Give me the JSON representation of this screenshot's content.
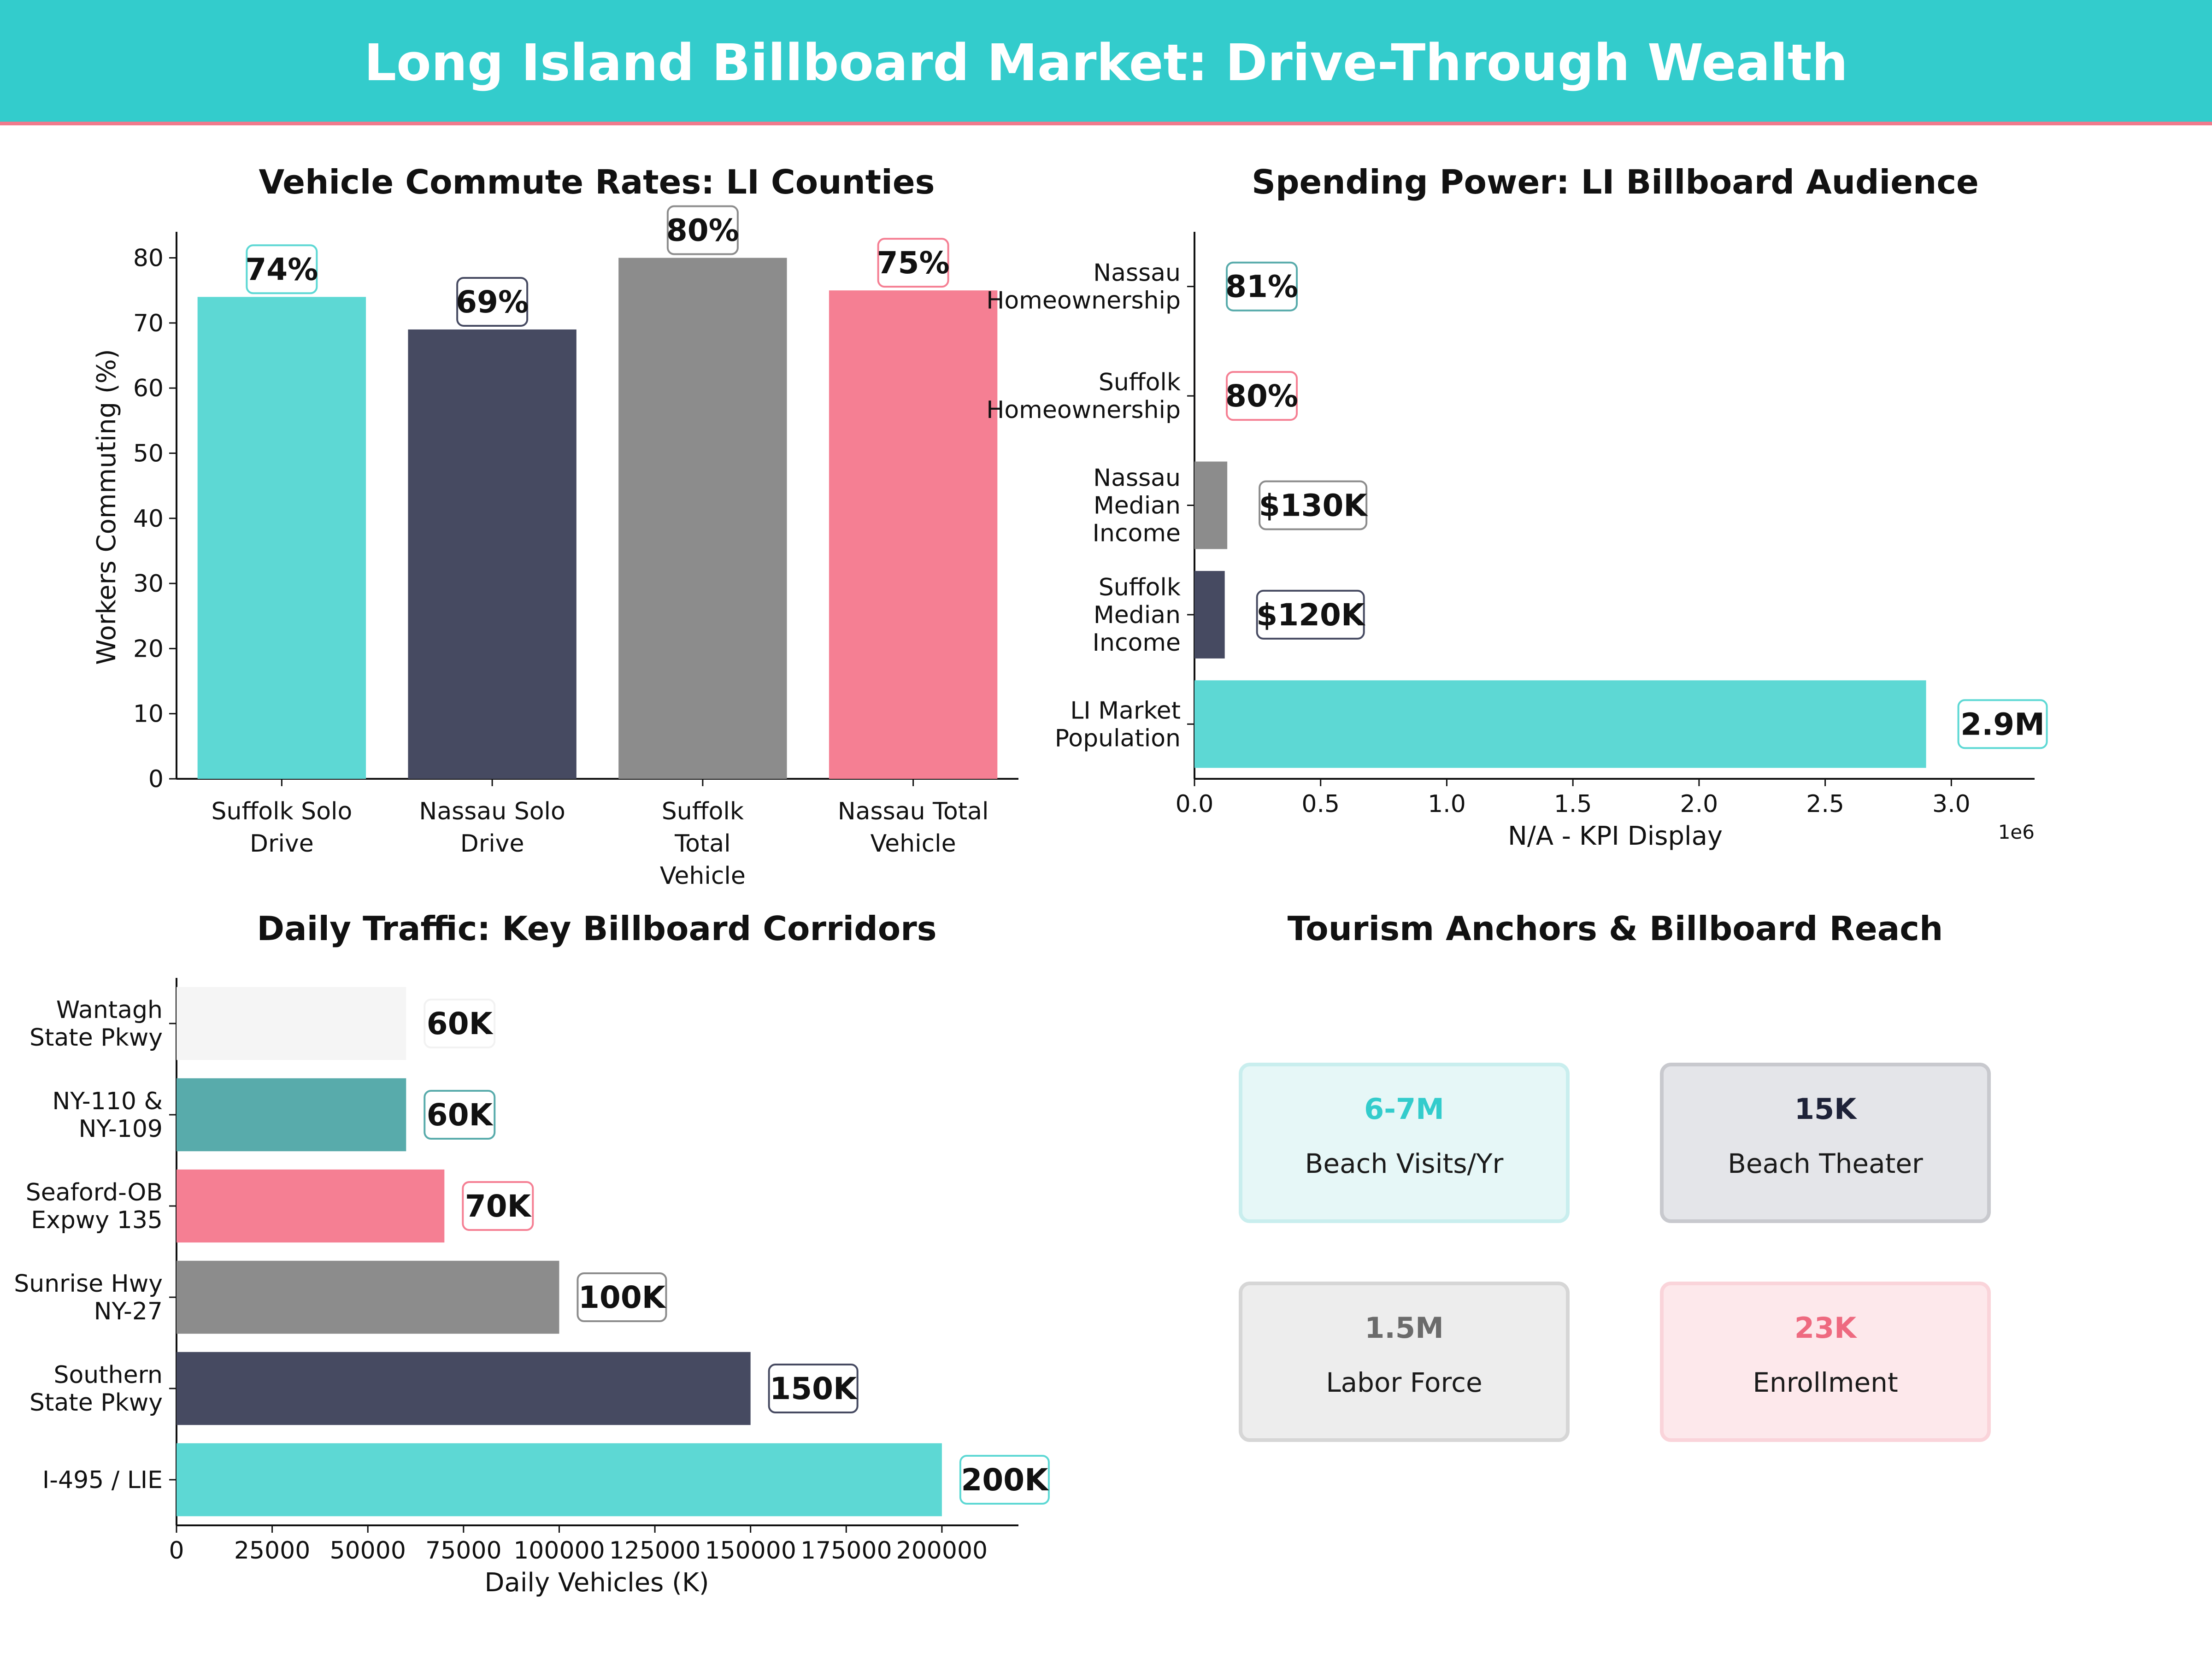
{
  "page_title": "Long Island Billboard Market: Drive-Through Wealth",
  "colors": {
    "header_bg": "#33cccc",
    "header_border": "#f07a8c",
    "teal": "#5dd8d4",
    "navy": "#464a61",
    "gray": "#8c8c8c",
    "pink": "#f57f93",
    "dark_teal": "#58abab",
    "light": "#f5f5f5"
  },
  "chart_data": [
    {
      "id": "commute",
      "type": "bar",
      "title": "Vehicle Commute Rates: LI Counties",
      "ylabel": "Workers Commuting (%)",
      "xlabel": "",
      "ylim": [
        0,
        84
      ],
      "yticks": [
        0,
        10,
        20,
        30,
        40,
        50,
        60,
        70,
        80
      ],
      "categories": [
        [
          "Suffolk Solo",
          "Drive"
        ],
        [
          "Nassau Solo",
          "Drive"
        ],
        [
          "Suffolk",
          "Total",
          "Vehicle"
        ],
        [
          "Nassau Total",
          "Vehicle"
        ]
      ],
      "values": [
        74,
        69,
        80,
        75
      ],
      "value_labels": [
        "74%",
        "69%",
        "80%",
        "75%"
      ],
      "bar_colors": [
        "#5dd8d4",
        "#464a61",
        "#8c8c8c",
        "#f57f93"
      ],
      "label_border_colors": [
        "#5dd8d4",
        "#464a61",
        "#8c8c8c",
        "#f57f93"
      ]
    },
    {
      "id": "spending",
      "type": "bar",
      "orientation": "horizontal",
      "title": "Spending Power: LI Billboard Audience",
      "xlabel": "N/A - KPI Display",
      "xlim": [
        0,
        3330000
      ],
      "xticks": [
        0,
        500000,
        1000000,
        1500000,
        2000000,
        2500000,
        3000000
      ],
      "xtick_labels": [
        "0.0",
        "0.5",
        "1.0",
        "1.5",
        "2.0",
        "2.5",
        "3.0"
      ],
      "offset_text": "1e6",
      "categories": [
        [
          "LI Market",
          "Population"
        ],
        [
          "Suffolk",
          "Median",
          "Income"
        ],
        [
          "Nassau",
          "Median",
          "Income"
        ],
        [
          "Suffolk",
          "Homeownership"
        ],
        [
          "Nassau",
          "Homeownership"
        ]
      ],
      "values": [
        2900000,
        120000,
        130000,
        80,
        81
      ],
      "value_labels": [
        "2.9M",
        "$120K",
        "$130K",
        "80%",
        "81%"
      ],
      "bar_colors": [
        "#5dd8d4",
        "#464a61",
        "#8c8c8c",
        "#f57f93",
        "#58abab"
      ],
      "label_border_colors": [
        "#5dd8d4",
        "#464a61",
        "#8c8c8c",
        "#f57f93",
        "#58abab"
      ]
    },
    {
      "id": "traffic",
      "type": "bar",
      "orientation": "horizontal",
      "title": "Daily Traffic: Key Billboard Corridors",
      "xlabel": "Daily Vehicles (K)",
      "xlim": [
        0,
        220000
      ],
      "xticks": [
        0,
        25000,
        50000,
        75000,
        100000,
        125000,
        150000,
        175000,
        200000
      ],
      "xtick_labels": [
        "0",
        "25000",
        "50000",
        "75000",
        "100000",
        "125000",
        "150000",
        "175000",
        "200000"
      ],
      "categories": [
        [
          "I-495 / LIE"
        ],
        [
          "Southern",
          "State Pkwy"
        ],
        [
          "Sunrise Hwy",
          "NY-27"
        ],
        [
          "Seaford-OB",
          "Expwy 135"
        ],
        [
          "NY-110 &",
          "NY-109"
        ],
        [
          "Wantagh",
          "State Pkwy"
        ]
      ],
      "values": [
        200000,
        150000,
        100000,
        70000,
        60000,
        60000
      ],
      "value_labels": [
        "200K",
        "150K",
        "100K",
        "70K",
        "60K",
        "60K"
      ],
      "bar_colors": [
        "#5dd8d4",
        "#464a61",
        "#8c8c8c",
        "#f57f93",
        "#58abab",
        "#f5f5f5"
      ],
      "label_border_colors": [
        "#5dd8d4",
        "#464a61",
        "#8c8c8c",
        "#f57f93",
        "#58abab",
        "#f2f2f2"
      ]
    }
  ],
  "tourism": {
    "title": "Tourism Anchors & Billboard Reach",
    "cards": [
      {
        "value": "6-7M",
        "label": "Beach Visits/Yr",
        "value_color": "#33cccc",
        "bg": "#e6f7f7",
        "border": "#c9eeee"
      },
      {
        "value": "15K",
        "label": "Beach Theater",
        "value_color": "#1e2238",
        "bg": "#e4e5e9",
        "border": "#c8c9ce"
      },
      {
        "value": "1.5M",
        "label": "Labor Force",
        "value_color": "#6b6b6b",
        "bg": "#ededed",
        "border": "#d6d6d6"
      },
      {
        "value": "23K",
        "label": "Enrollment",
        "value_color": "#ee6a80",
        "bg": "#fde8eb",
        "border": "#fad4da"
      }
    ]
  }
}
